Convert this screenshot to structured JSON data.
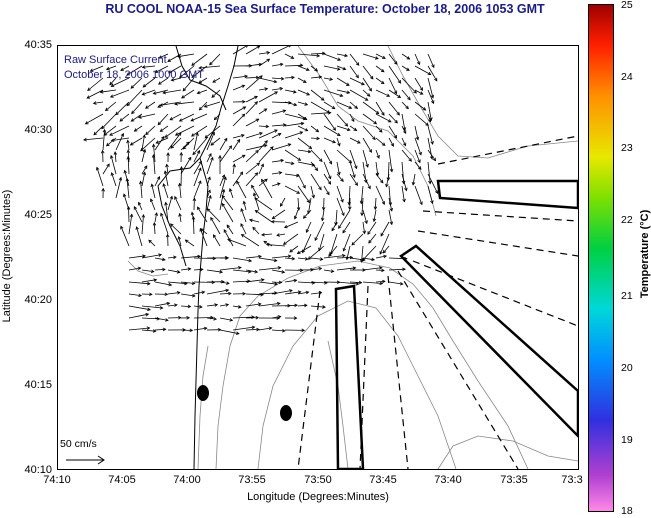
{
  "title": "RU COOL  NOAA-15  Sea Surface Temperature:  October 18, 2006 1053 GMT",
  "overlay": {
    "line1": "Raw Surface Current",
    "line2": "October 18, 2006 1000 GMT"
  },
  "scale_label": "50 cm/s",
  "axes": {
    "xlabel": "Longitude (Degrees:Minutes)",
    "ylabel": "Latitude (Degrees:Minutes)",
    "xticks": [
      "74:10",
      "74:05",
      "74:00",
      "73:55",
      "73:50",
      "73:45",
      "73:40",
      "73:35",
      "73:3"
    ],
    "yticks": [
      "40:35",
      "40:30",
      "40:25",
      "40:20",
      "40:15",
      "40:10"
    ]
  },
  "colorbar": {
    "title": "Temperature (°C)",
    "ticks": [
      "25",
      "24",
      "23",
      "22",
      "21",
      "20",
      "19",
      "18"
    ],
    "colors": [
      "#a00000",
      "#ff2000",
      "#ff9000",
      "#e8e800",
      "#00d040",
      "#00d8d8",
      "#0090ff",
      "#3030e0",
      "#b040d0",
      "#ff88e8"
    ]
  }
}
